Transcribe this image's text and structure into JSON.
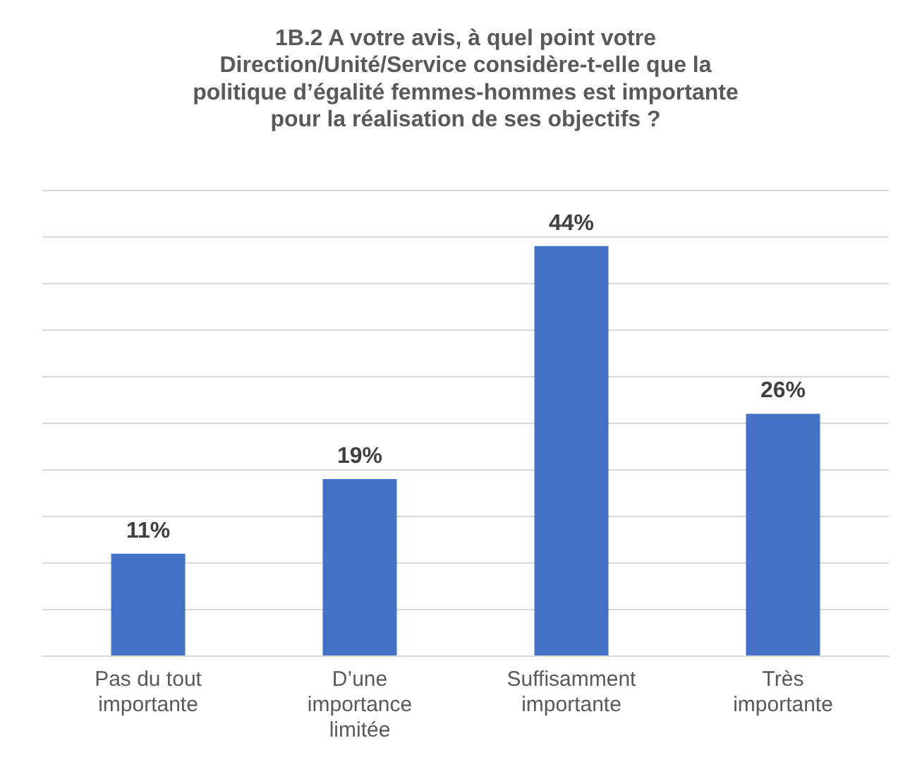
{
  "chart_data": {
    "type": "bar",
    "title": "1B.2 A votre avis, à quel point votre Direction/Unité/Service considère-t-elle que la politique d’égalité femmes-hommes est importante pour la réalisation de ses objectifs ?",
    "categories": [
      "Pas du tout importante",
      "D’une importance limitée",
      "Suffisamment importante",
      "Très importante"
    ],
    "values": [
      11,
      19,
      44,
      26
    ],
    "value_labels": [
      "11%",
      "19%",
      "44%",
      "26%"
    ],
    "color": "#4472c4",
    "ylim": [
      0,
      50
    ],
    "grid": "y",
    "tick_labels": "x"
  }
}
